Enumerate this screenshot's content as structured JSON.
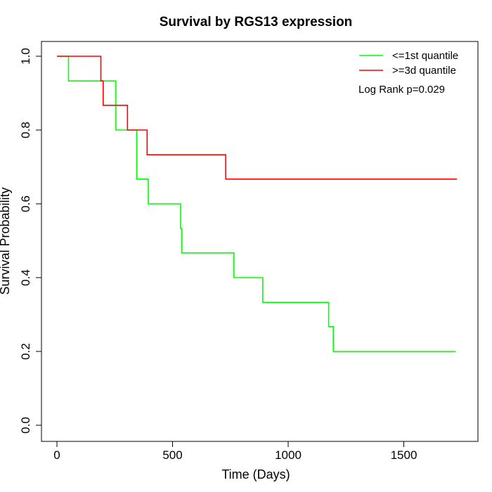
{
  "chart_data": {
    "type": "line",
    "step": true,
    "title": "Survival by RGS13 expression",
    "xlabel": "Time (Days)",
    "ylabel": "Survival Probability",
    "xlim": [
      0,
      1730
    ],
    "ylim": [
      0,
      1
    ],
    "xticks": [
      0,
      500,
      1000,
      1500
    ],
    "yticks": [
      0.0,
      0.2,
      0.4,
      0.6,
      0.8,
      1.0
    ],
    "xtick_labels": [
      "0",
      "500",
      "1000",
      "1500"
    ],
    "ytick_labels": [
      "0.0",
      "0.2",
      "0.4",
      "0.6",
      "0.8",
      "1.0"
    ],
    "grid": false,
    "legend_position": "top-right",
    "annotation": "Log Rank p=0.029",
    "series": [
      {
        "name": "<=1st quantile",
        "color": "#00ff00",
        "x": [
          0,
          50,
          255,
          345,
          395,
          535,
          540,
          765,
          890,
          1175,
          1195,
          1725
        ],
        "y": [
          1.0,
          0.933,
          0.8,
          0.667,
          0.6,
          0.533,
          0.467,
          0.4,
          0.333,
          0.267,
          0.2,
          0.2
        ]
      },
      {
        "name": ">=3d quantile",
        "color": "#ff0000",
        "x": [
          0,
          190,
          200,
          305,
          390,
          730,
          1730
        ],
        "y": [
          1.0,
          0.933,
          0.867,
          0.8,
          0.733,
          0.667,
          0.667
        ]
      }
    ]
  }
}
